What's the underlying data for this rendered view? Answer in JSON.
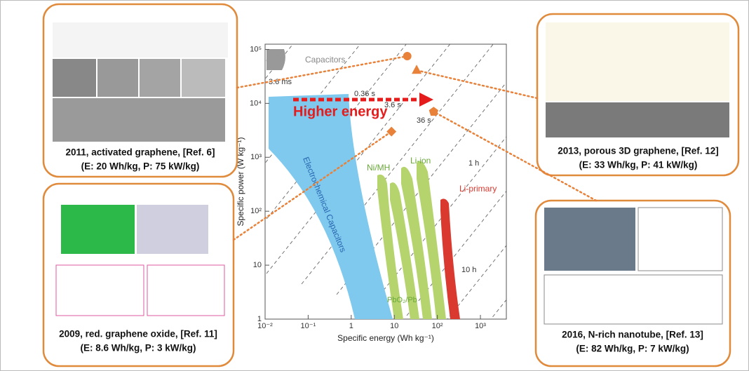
{
  "chart_data": {
    "type": "scatter",
    "xscale": "log",
    "yscale": "log",
    "xlabel": "Specific energy (Wh kg⁻¹)",
    "ylabel": "Specific power (W kg⁻¹)",
    "xlim": [
      0.01,
      4000
    ],
    "ylim": [
      1,
      125000
    ],
    "xticks": [
      {
        "value": 0.01,
        "label": "10⁻²"
      },
      {
        "value": 0.1,
        "label": "10⁻¹"
      },
      1,
      10,
      {
        "value": 100,
        "label": "10²"
      },
      {
        "value": 1000,
        "label": "10³"
      }
    ],
    "yticks": [
      1,
      10,
      {
        "value": 100,
        "label": "10²"
      },
      {
        "value": 1000,
        "label": "10³"
      },
      {
        "value": 10000,
        "label": "10⁴"
      },
      {
        "value": 100000,
        "label": "10⁵"
      }
    ],
    "marker_color": "#e8823a",
    "series": [
      {
        "markers": [
          "circle",
          "triangle",
          "diamond",
          "pentagon"
        ],
        "x": [
          20,
          33,
          8.6,
          82
        ],
        "values": [
          75000,
          41000,
          3000,
          7000
        ]
      }
    ],
    "annotations": {
      "capacitors": "Capacitors",
      "ec": "Electrochemical Capacitors",
      "nimh": "Ni/MH",
      "liion": "Li-ion",
      "liprimary": "Li-primary",
      "pbo2": "PbO₂/Pb",
      "higher": "Higher energy",
      "t1": "3.6 ms",
      "t2": "0.36 s",
      "t3": "3.6 s",
      "t4": "36 s",
      "t5": "1 h",
      "t6": "10 h"
    },
    "callouts": [
      {
        "caption": "2011, activated graphene, [Ref. 6]",
        "detail": "(E: 20 Wh/kg, P: 75 kW/kg)"
      },
      {
        "caption": "2013, porous 3D graphene, [Ref. 12]",
        "detail": "(E: 33 Wh/kg, P: 41 kW/kg)"
      },
      {
        "caption": "2009, red. graphene oxide, [Ref. 11]",
        "detail": "(E: 8.6 Wh/kg, P: 3 kW/kg)"
      },
      {
        "caption": "2016, N-rich nanotube, [Ref. 13]",
        "detail": "(E: 82 Wh/kg, P: 7 kW/kg)"
      }
    ]
  }
}
